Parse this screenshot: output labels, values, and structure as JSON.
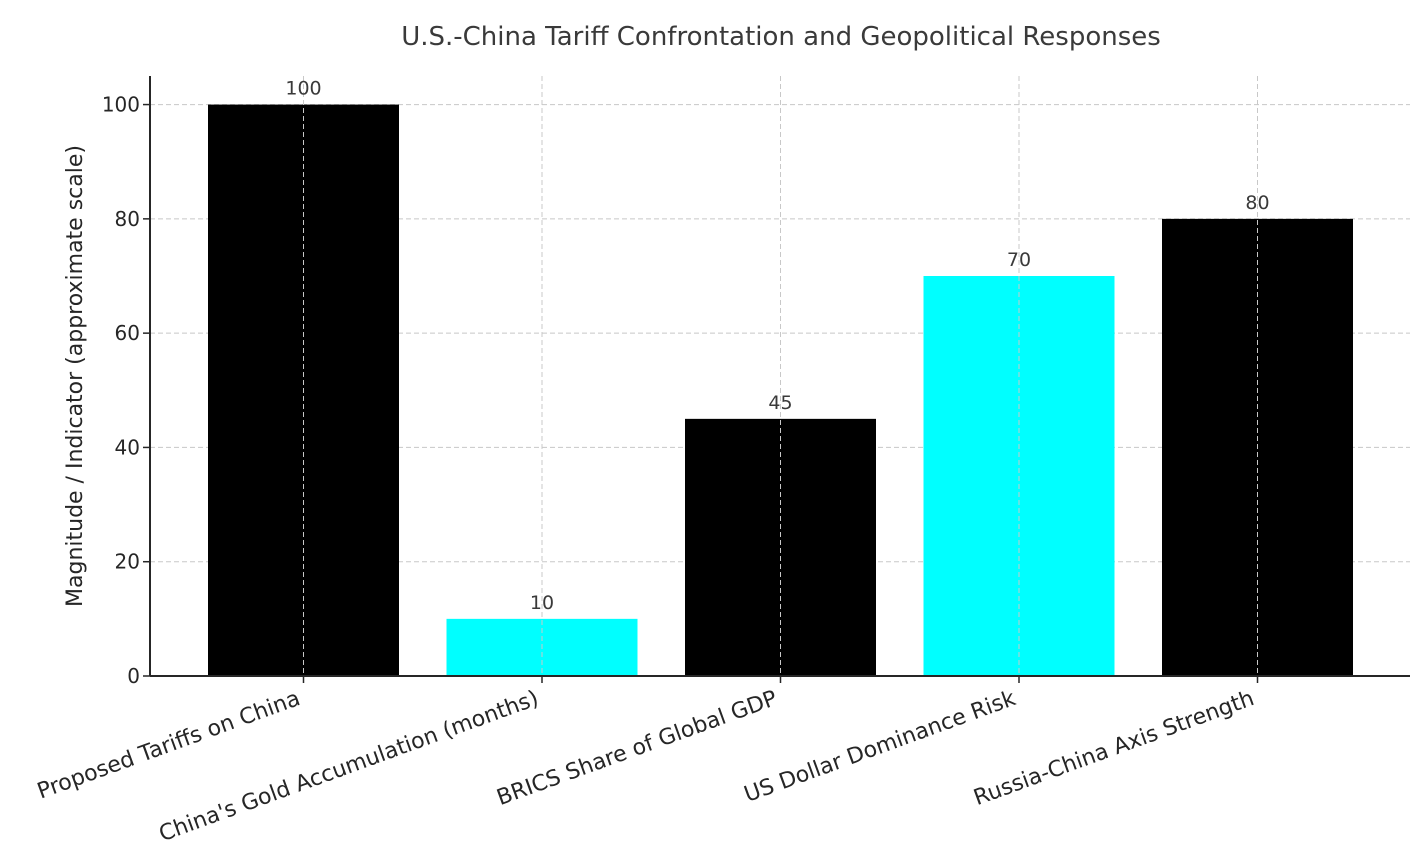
{
  "chart_data": {
    "type": "bar",
    "title": "U.S.-China Tariff Confrontation and Geopolitical Responses",
    "xlabel": "",
    "ylabel": "Magnitude / Indicator (approximate scale)",
    "categories": [
      "Proposed Tariffs on China",
      "China's Gold Accumulation (months)",
      "BRICS Share of Global GDP",
      "US Dollar Dominance Risk",
      "Russia-China Axis Strength"
    ],
    "values": [
      100,
      10,
      45,
      70,
      80
    ],
    "colors": [
      "#000000",
      "#00ffff",
      "#000000",
      "#00ffff",
      "#000000"
    ],
    "ylim": [
      0,
      105
    ],
    "yticks": [
      0,
      20,
      40,
      60,
      80,
      100
    ],
    "grid": true
  }
}
